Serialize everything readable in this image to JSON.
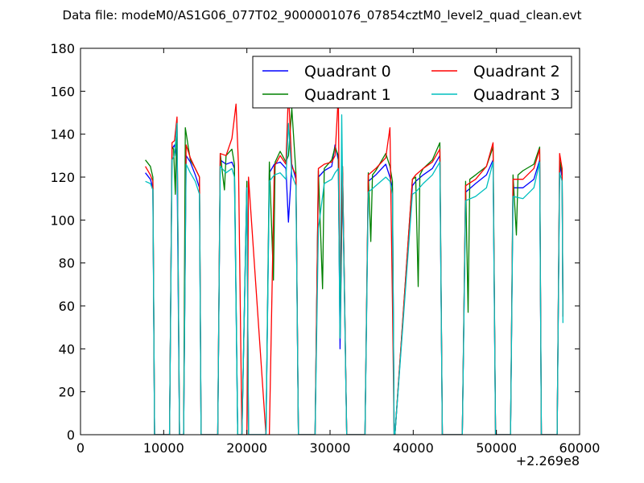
{
  "chart_data": {
    "type": "line",
    "title": "Data file: modeM0/AS1G06_077T02_9000001076_07854cztM0_level2_quad_clean.evt",
    "x_offset_label": "+2.269e8",
    "xlim": [
      0,
      60000
    ],
    "ylim": [
      0,
      180
    ],
    "x_ticks": [
      "0",
      "10000",
      "20000",
      "30000",
      "40000",
      "50000",
      "60000"
    ],
    "y_ticks": [
      "0",
      "20",
      "40",
      "60",
      "80",
      "100",
      "120",
      "140",
      "160",
      "180"
    ],
    "legend_location": "upper right",
    "legend_columns": 2,
    "grid": false,
    "x_tick_values": [
      0,
      10000,
      20000,
      30000,
      40000,
      50000,
      60000
    ],
    "y_tick_values": [
      0,
      20,
      40,
      60,
      80,
      100,
      120,
      140,
      160,
      180
    ],
    "series": [
      {
        "name": "Quadrant 0",
        "color": "#0000ff",
        "x": [
          7800,
          8400,
          8700,
          8900,
          10700,
          11000,
          11300,
          11600,
          11900,
          12400,
          12700,
          13200,
          13800,
          14300,
          14500,
          16500,
          16800,
          17500,
          18200,
          18500,
          18900,
          19400,
          20000,
          20200,
          22300,
          22700,
          23300,
          24000,
          24700,
          25000,
          25400,
          25900,
          26200,
          28200,
          28600,
          29300,
          30200,
          30600,
          31000,
          31200,
          31500,
          32000,
          34200,
          34600,
          35500,
          36700,
          37200,
          37500,
          37700,
          37800,
          39900,
          40300,
          41200,
          42300,
          43200,
          43500,
          45900,
          46300,
          47500,
          48800,
          49600,
          49900,
          51700,
          52000,
          53200,
          54500,
          55200,
          55400,
          57300,
          57600,
          57900,
          58000
        ],
        "y": [
          122,
          119,
          115,
          0,
          0,
          133,
          135,
          128,
          0,
          0,
          130,
          127,
          121,
          115,
          0,
          0,
          128,
          126,
          127,
          124,
          0,
          0,
          118,
          0,
          0,
          122,
          126,
          127,
          124,
          99,
          126,
          119,
          0,
          0,
          120,
          123,
          125,
          135,
          128,
          40,
          122,
          0,
          0,
          118,
          121,
          126,
          120,
          115,
          0,
          0,
          116,
          118,
          121,
          124,
          130,
          0,
          0,
          113,
          117,
          121,
          128,
          0,
          0,
          115,
          115,
          119,
          128,
          0,
          0,
          126,
          120,
          55
        ]
      },
      {
        "name": "Quadrant 1",
        "color": "#008000",
        "x": [
          7800,
          8400,
          8700,
          8900,
          10700,
          11000,
          11200,
          11400,
          11600,
          11900,
          12400,
          12600,
          13200,
          13800,
          14300,
          14500,
          16500,
          16800,
          17300,
          17500,
          18200,
          18500,
          18900,
          19400,
          20000,
          20200,
          22300,
          22700,
          23200,
          23400,
          24000,
          24700,
          25000,
          25400,
          25900,
          26200,
          28200,
          28600,
          29100,
          29300,
          30200,
          30600,
          31000,
          31200,
          31500,
          32000,
          34200,
          34600,
          34900,
          35100,
          35500,
          36700,
          37200,
          37500,
          37700,
          37800,
          39900,
          40300,
          40600,
          40800,
          41200,
          42300,
          43200,
          43500,
          45900,
          46300,
          46600,
          46800,
          47500,
          48800,
          49600,
          49900,
          51700,
          52000,
          52400,
          52600,
          53200,
          54500,
          55200,
          55400,
          57300,
          57600,
          57900,
          58000
        ],
        "y": [
          128,
          125,
          120,
          0,
          0,
          134,
          133,
          112,
          147,
          0,
          0,
          143,
          128,
          124,
          120,
          0,
          0,
          131,
          114,
          130,
          133,
          126,
          0,
          0,
          118,
          0,
          0,
          127,
          72,
          127,
          132,
          127,
          130,
          152,
          122,
          0,
          0,
          123,
          68,
          124,
          128,
          134,
          130,
          45,
          125,
          0,
          0,
          122,
          90,
          121,
          123,
          131,
          125,
          118,
          0,
          0,
          119,
          120,
          69,
          121,
          124,
          128,
          136,
          0,
          0,
          118,
          57,
          119,
          121,
          125,
          134,
          0,
          0,
          121,
          93,
          121,
          123,
          126,
          134,
          0,
          0,
          128,
          122,
          55
        ]
      },
      {
        "name": "Quadrant 2",
        "color": "#ff0000",
        "x": [
          7800,
          8400,
          8700,
          8900,
          10700,
          11000,
          11300,
          11600,
          11900,
          12400,
          12700,
          13200,
          13800,
          14300,
          14500,
          16500,
          16800,
          17500,
          18200,
          18700,
          19000,
          19400,
          20000,
          20200,
          22300,
          22700,
          23300,
          24000,
          24700,
          25000,
          25400,
          25900,
          26200,
          28200,
          28600,
          29300,
          30200,
          30600,
          31000,
          31200,
          31500,
          32000,
          34200,
          34600,
          35500,
          36700,
          37200,
          37500,
          37700,
          37800,
          39900,
          40300,
          41200,
          42300,
          43200,
          43500,
          45900,
          46300,
          47500,
          48800,
          49600,
          49900,
          51700,
          52000,
          53200,
          54500,
          55200,
          55400,
          57300,
          57600,
          57900,
          58000
        ],
        "y": [
          125,
          121,
          118,
          0,
          0,
          136,
          137,
          148,
          0,
          0,
          135,
          129,
          124,
          120,
          0,
          0,
          131,
          130,
          138,
          154,
          125,
          0,
          0,
          120,
          0,
          0,
          125,
          130,
          126,
          160,
          125,
          121,
          0,
          0,
          124,
          126,
          127,
          130,
          158,
          60,
          125,
          0,
          0,
          121,
          124,
          129,
          143,
          62,
          0,
          0,
          119,
          121,
          124,
          127,
          133,
          0,
          0,
          116,
          119,
          125,
          136,
          0,
          0,
          119,
          119,
          124,
          133,
          0,
          0,
          131,
          124,
          55
        ]
      },
      {
        "name": "Quadrant 3",
        "color": "#00bfbf",
        "x": [
          7800,
          8400,
          8700,
          8900,
          10700,
          11000,
          11300,
          11600,
          11900,
          12400,
          12700,
          13200,
          13800,
          14300,
          14500,
          16500,
          16800,
          17500,
          18200,
          18500,
          18900,
          19400,
          20000,
          20200,
          22300,
          22700,
          23300,
          24000,
          24700,
          25000,
          25400,
          25900,
          26200,
          28200,
          28600,
          29300,
          30200,
          30600,
          31000,
          31200,
          31400,
          31500,
          32000,
          34200,
          34600,
          35500,
          36700,
          37200,
          37500,
          37700,
          37800,
          39900,
          40300,
          41200,
          42300,
          43200,
          43500,
          45900,
          46300,
          47500,
          48800,
          49600,
          49900,
          51700,
          52000,
          53200,
          54500,
          55200,
          55400,
          57300,
          57600,
          57900,
          58000
        ],
        "y": [
          118,
          117,
          114,
          0,
          0,
          128,
          130,
          145,
          0,
          0,
          126,
          122,
          118,
          112,
          0,
          0,
          125,
          122,
          124,
          120,
          0,
          0,
          115,
          0,
          0,
          118,
          121,
          122,
          119,
          145,
          121,
          116,
          0,
          0,
          96,
          117,
          119,
          122,
          124,
          45,
          149,
          118,
          0,
          0,
          113,
          116,
          120,
          118,
          112,
          0,
          0,
          112,
          113,
          117,
          121,
          127,
          0,
          0,
          109,
          111,
          115,
          127,
          0,
          0,
          111,
          110,
          115,
          127,
          0,
          0,
          122,
          118,
          52
        ]
      }
    ]
  }
}
